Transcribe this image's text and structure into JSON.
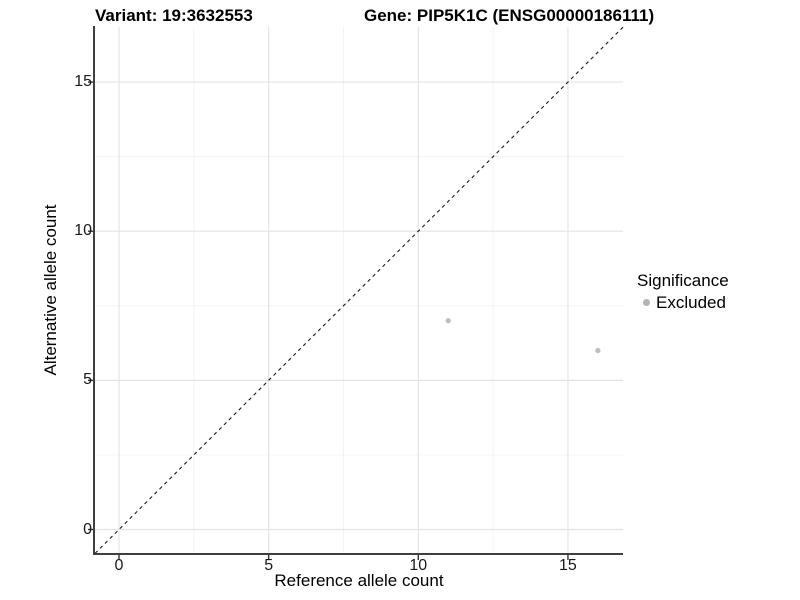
{
  "title": {
    "variant": "Variant: 19:3632553",
    "gene": "Gene: PIP5K1C (ENSG00000186111)"
  },
  "axes": {
    "x_label": "Reference allele count",
    "y_label": "Alternative allele count"
  },
  "legend": {
    "title": "Significance",
    "items": [
      {
        "label": "Excluded",
        "color": "#b3b3b3"
      }
    ]
  },
  "colors": {
    "background": "#ffffff",
    "grid_major": "#e4e4e4",
    "grid_minor": "#f2f2f2",
    "axis_line": "#3f3f3f",
    "tick_mark": "#333333",
    "point": "#bdbdbd",
    "dashed_line": "#1a1a1a",
    "text": "#000000"
  },
  "chart_data": {
    "type": "scatter",
    "title": "Variant: 19:3632553    Gene: PIP5K1C (ENSG00000186111)",
    "xlabel": "Reference allele count",
    "ylabel": "Alternative allele count",
    "xlim": [
      -0.8,
      16.85
    ],
    "ylim": [
      -0.8,
      16.86
    ],
    "x_ticks": [
      0,
      5,
      10,
      15
    ],
    "y_ticks": [
      0,
      5,
      10,
      15
    ],
    "x_minor_ticks": [
      2.5,
      7.5,
      12.5
    ],
    "y_minor_ticks": [
      2.5,
      7.5,
      12.5
    ],
    "grid": true,
    "legend_position": "right",
    "reference_line": {
      "type": "identity",
      "equation": "y = x",
      "style": "dashed",
      "color": "#1a1a1a"
    },
    "series": [
      {
        "name": "Excluded",
        "significance": "Excluded",
        "color": "#bdbdbd",
        "points": [
          {
            "x": 11,
            "y": 7
          },
          {
            "x": 16,
            "y": 6
          }
        ]
      }
    ]
  }
}
